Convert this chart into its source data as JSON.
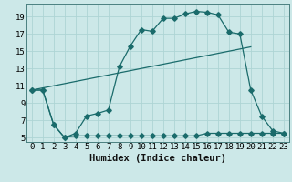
{
  "xlabel": "Humidex (Indice chaleur)",
  "bg_color": "#cce8e8",
  "line_color": "#1a6b6b",
  "grid_color": "#aed4d4",
  "curve1_x": [
    0,
    1,
    2,
    3,
    4,
    5,
    6,
    7,
    8,
    9,
    10,
    11,
    12,
    13,
    14,
    15,
    16,
    17,
    18,
    19,
    20,
    21,
    22,
    23
  ],
  "curve1_y": [
    10.5,
    10.5,
    6.5,
    5.0,
    5.5,
    7.5,
    7.8,
    8.2,
    13.2,
    15.6,
    17.5,
    17.3,
    18.8,
    18.8,
    19.3,
    19.6,
    19.5,
    19.2,
    17.2,
    17.0,
    10.5,
    7.5,
    5.8,
    5.5
  ],
  "curve2_x": [
    0,
    1,
    2,
    3,
    4,
    5,
    6,
    7,
    8,
    9,
    10,
    11,
    12,
    13,
    14,
    15,
    16,
    17,
    18,
    19,
    20,
    21,
    22,
    23
  ],
  "curve2_y": [
    10.5,
    10.5,
    6.5,
    5.0,
    5.2,
    5.2,
    5.2,
    5.2,
    5.2,
    5.2,
    5.2,
    5.2,
    5.2,
    5.2,
    5.2,
    5.2,
    5.5,
    5.5,
    5.5,
    5.5,
    5.5,
    5.5,
    5.5,
    5.5
  ],
  "curve3_x": [
    0,
    20
  ],
  "curve3_y": [
    10.5,
    15.5
  ],
  "xlim": [
    -0.5,
    23.5
  ],
  "ylim": [
    4.5,
    20.5
  ],
  "xticks": [
    0,
    1,
    2,
    3,
    4,
    5,
    6,
    7,
    8,
    9,
    10,
    11,
    12,
    13,
    14,
    15,
    16,
    17,
    18,
    19,
    20,
    21,
    22,
    23
  ],
  "yticks": [
    5,
    7,
    9,
    11,
    13,
    15,
    17,
    19
  ],
  "tick_fontsize": 6.5,
  "xlabel_fontsize": 7.5
}
